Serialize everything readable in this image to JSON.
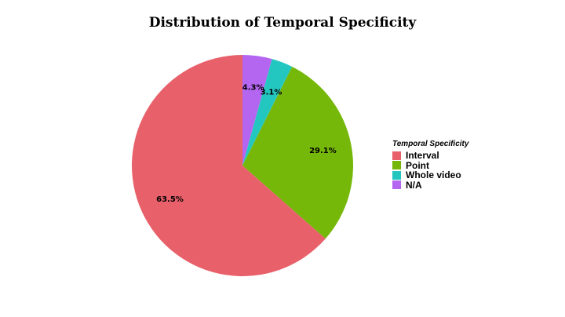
{
  "chart_data": {
    "type": "pie",
    "title": "Distribution of Temporal Specificity",
    "legend_title": "Temporal Specificity",
    "legend_position": "right",
    "categories": [
      "Interval",
      "Point",
      "Whole video",
      "N/A"
    ],
    "values": [
      63.5,
      29.1,
      3.1,
      4.3
    ],
    "labels": [
      "63.5%",
      "29.1%",
      "3.1%",
      "4.3%"
    ],
    "colors": [
      "#E8606A",
      "#76B80A",
      "#24C7BF",
      "#B466F0"
    ]
  }
}
